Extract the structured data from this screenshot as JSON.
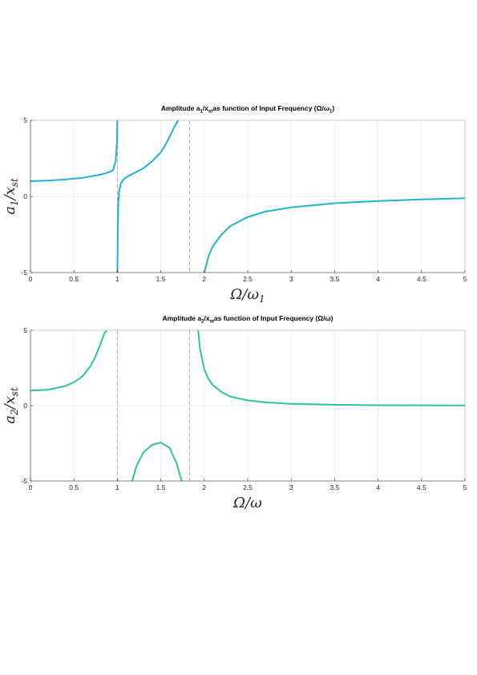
{
  "chart_data": [
    {
      "type": "line",
      "title": {
        "prefix": "Amplitude a",
        "sub1": "1",
        "mid": "/x",
        "sub2": "st",
        "suffix": "as function of Input Frequency (Ω/ω",
        "sub3": "1",
        "end": ")"
      },
      "xlabel": {
        "main": "Ω/ω",
        "sub": "1"
      },
      "ylabel": {
        "main": "a",
        "sub1": "1",
        "mid": "/x",
        "sub2": "st"
      },
      "xlim": [
        0,
        5
      ],
      "ylim": [
        -5,
        5
      ],
      "xticks": [
        "0",
        "0.5",
        "1",
        "1.5",
        "2",
        "2.5",
        "3",
        "3.5",
        "4",
        "4.5",
        "5"
      ],
      "yticks": [
        "-5",
        "0",
        "5"
      ],
      "grid": true,
      "color": "#1fb2d1",
      "vlines": [
        1.0,
        1.83
      ],
      "series": [
        {
          "segment": "low",
          "x": [
            0,
            0.2,
            0.4,
            0.6,
            0.8,
            0.9,
            0.95,
            0.98,
            0.995,
            1.0
          ],
          "y": [
            1.0,
            1.04,
            1.11,
            1.22,
            1.42,
            1.58,
            1.72,
            2.3,
            3.5,
            5
          ]
        },
        {
          "segment": "mid",
          "x": [
            1.0,
            1.005,
            1.01,
            1.02,
            1.04,
            1.07,
            1.1,
            1.2,
            1.3,
            1.4,
            1.5,
            1.55,
            1.6,
            1.65,
            1.7
          ],
          "y": [
            -5,
            -2.5,
            -0.5,
            0.3,
            0.85,
            1.1,
            1.25,
            1.55,
            1.85,
            2.3,
            2.9,
            3.35,
            3.9,
            4.5,
            5
          ]
        },
        {
          "segment": "high",
          "x": [
            2.0,
            2.05,
            2.1,
            2.2,
            2.3,
            2.5,
            2.7,
            3.0,
            3.5,
            4.0,
            4.5,
            5.0
          ],
          "y": [
            -5,
            -3.9,
            -3.25,
            -2.5,
            -1.95,
            -1.35,
            -1.0,
            -0.72,
            -0.45,
            -0.3,
            -0.2,
            -0.12
          ]
        }
      ]
    },
    {
      "type": "line",
      "title": {
        "prefix": "Amplitude a",
        "sub1": "2",
        "mid": "/x",
        "sub2": "st",
        "suffix": "as function of Input Frequency (Ω/ω",
        "sub3": "",
        "end": ")"
      },
      "xlabel": {
        "main": "Ω/ω",
        "sub": ""
      },
      "ylabel": {
        "main": "a",
        "sub1": "2",
        "mid": "/x",
        "sub2": "st"
      },
      "xlim": [
        0,
        5
      ],
      "ylim": [
        -5,
        5
      ],
      "xticks": [
        "0",
        "0.5",
        "1",
        "1.5",
        "2",
        "2.5",
        "3",
        "3.5",
        "4",
        "4.5",
        "5"
      ],
      "yticks": [
        "-5",
        "0",
        "5"
      ],
      "grid": true,
      "color": "#2ec49a",
      "vlines": [
        1.0,
        1.83
      ],
      "series": [
        {
          "segment": "low",
          "x": [
            0,
            0.2,
            0.4,
            0.5,
            0.6,
            0.7,
            0.75,
            0.8,
            0.85,
            0.88
          ],
          "y": [
            1.0,
            1.05,
            1.3,
            1.55,
            1.95,
            2.7,
            3.3,
            4.0,
            4.8,
            5
          ]
        },
        {
          "segment": "mid",
          "x": [
            1.17,
            1.22,
            1.3,
            1.4,
            1.5,
            1.6,
            1.68,
            1.74
          ],
          "y": [
            -5,
            -4.0,
            -3.1,
            -2.6,
            -2.45,
            -2.8,
            -3.8,
            -5
          ]
        },
        {
          "segment": "high",
          "x": [
            1.93,
            1.95,
            2.0,
            2.05,
            2.1,
            2.2,
            2.3,
            2.5,
            2.7,
            3.0,
            3.5,
            4.0,
            4.5,
            5.0
          ],
          "y": [
            5,
            3.8,
            2.4,
            1.75,
            1.35,
            0.9,
            0.6,
            0.35,
            0.22,
            0.12,
            0.06,
            0.03,
            0.02,
            0.01
          ]
        }
      ]
    }
  ]
}
